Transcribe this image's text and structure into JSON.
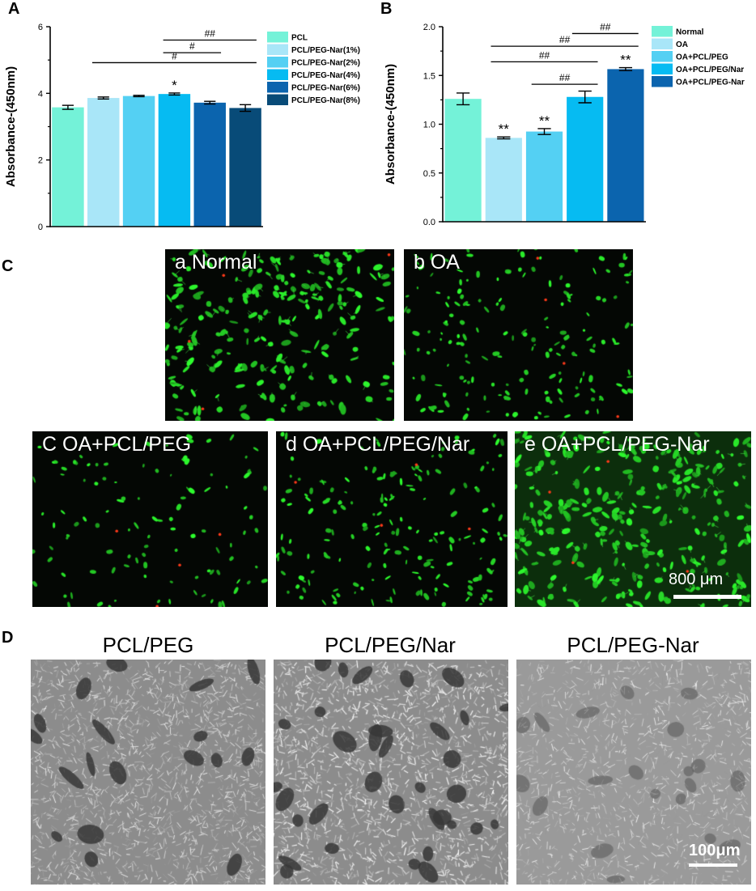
{
  "panels": {
    "A": "A",
    "B": "B",
    "C": "C",
    "D": "D"
  },
  "chart_data": [
    {
      "type": "bar",
      "panel": "A",
      "ylabel": "Absorbance-(450nm)",
      "xlabel": "",
      "ylim": [
        0,
        6
      ],
      "yticks": [
        "0",
        "2",
        "4",
        "6"
      ],
      "categories": [
        "PCL",
        "PCL/PEG-Nar(1%)",
        "PCL/PEG-Nar(2%)",
        "PCL/PEG-Nar(4%)",
        "PCL/PEG-Nar(6%)",
        "PCL/PEG-Nar(8%)"
      ],
      "values": [
        3.58,
        3.86,
        3.92,
        3.98,
        3.72,
        3.56
      ],
      "errors": [
        0.06,
        0.03,
        0.02,
        0.03,
        0.04,
        0.1
      ],
      "colors": [
        "#74f2d8",
        "#a9e6f8",
        "#54d0f3",
        "#06bbf2",
        "#0b64ae",
        "#084b78"
      ],
      "star_labels": [
        "",
        "",
        "",
        "*",
        "",
        ""
      ],
      "legend": [
        "PCL",
        "PCL/PEG-Nar(1%)",
        "PCL/PEG-Nar(2%)",
        "PCL/PEG-Nar(4%)",
        "PCL/PEG-Nar(6%)",
        "PCL/PEG-Nar(8%)"
      ],
      "legend_position": "top-right",
      "brackets": [
        {
          "label": "##",
          "from": 3,
          "to": 5,
          "level": 5.6
        },
        {
          "label": "#",
          "from": 3,
          "to": 4,
          "level": 5.22
        },
        {
          "label": "#",
          "from": 1,
          "to": 5,
          "level": 4.92
        }
      ],
      "grid": false
    },
    {
      "type": "bar",
      "panel": "B",
      "ylabel": "Absorbance-(450nm)",
      "xlabel": "",
      "ylim": [
        0,
        2.0
      ],
      "yticks": [
        "0.0",
        "0.5",
        "1.0",
        "1.5",
        "2.0"
      ],
      "categories": [
        "Normal",
        "OA",
        "OA+PCL/PEG",
        "OA+PCL/PEG/Nar",
        "OA+PCL/PEG-Nar"
      ],
      "values": [
        1.26,
        0.86,
        0.925,
        1.28,
        1.565
      ],
      "errors": [
        0.06,
        0.01,
        0.03,
        0.06,
        0.015
      ],
      "colors": [
        "#74f2d8",
        "#a9e6f8",
        "#54d0f3",
        "#06bbf2",
        "#0b64ae"
      ],
      "star_labels": [
        "",
        "**",
        "**",
        "",
        "**"
      ],
      "legend": [
        "Normal",
        "OA",
        "OA+PCL/PEG",
        "OA+PCL/PEG/Nar",
        "OA+PCL/PEG-Nar"
      ],
      "legend_position": "top-right",
      "brackets": [
        {
          "label": "##",
          "from": 3,
          "to": 4,
          "level": 1.93
        },
        {
          "label": "##",
          "from": 1,
          "to": 4,
          "level": 1.8
        },
        {
          "label": "##",
          "from": 1,
          "to": 3,
          "level": 1.64
        },
        {
          "label": "##",
          "from": 2,
          "to": 3,
          "level": 1.41
        }
      ],
      "grid": false
    }
  ],
  "fluorescence": {
    "images": [
      {
        "label": "a Normal",
        "density": "high"
      },
      {
        "label": "b  OA",
        "density": "medium"
      },
      {
        "label": "C  OA+PCL/PEG",
        "density": "low"
      },
      {
        "label": "d  OA+PCL/PEG/Nar",
        "density": "medium"
      },
      {
        "label": "e  OA+PCL/PEG-Nar",
        "density": "very-high"
      }
    ],
    "scale_label": "800 μm",
    "cell_color": "#2fe22f",
    "dead_cell_color": "#ff3a1a"
  },
  "sem": {
    "images": [
      {
        "title": "PCL/PEG"
      },
      {
        "title": "PCL/PEG/Nar"
      },
      {
        "title": "PCL/PEG-Nar"
      }
    ],
    "scale_label": "100μm"
  }
}
